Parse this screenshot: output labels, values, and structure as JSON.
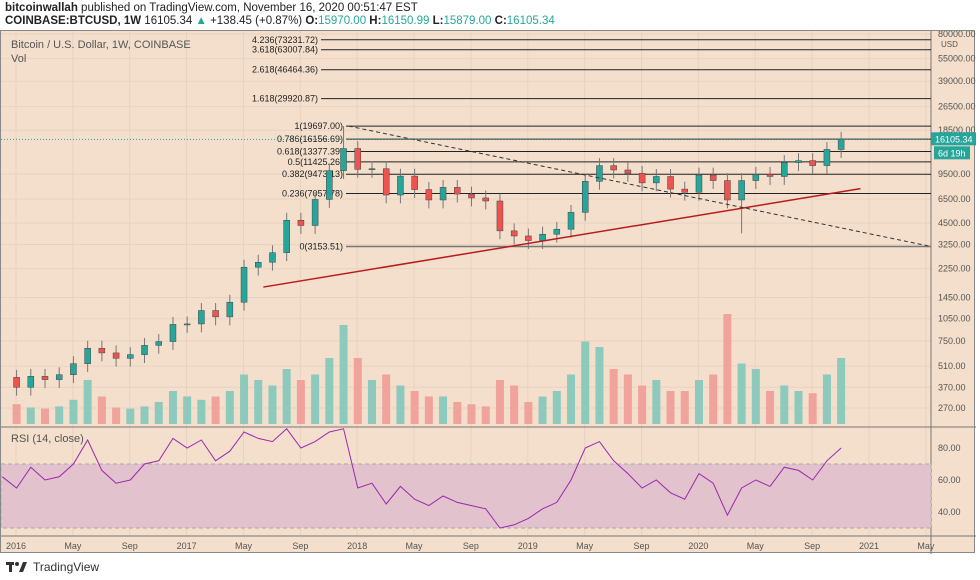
{
  "header": {
    "author": "bitcoinwallah",
    "published": "published on TradingView.com, November 16, 2020 00:51:47 EST",
    "symbol": "COINBASE:BTCUSD, 1W",
    "last": "16105.34",
    "change": "+138.45 (+0.87%)",
    "o_label": "O:",
    "o": "15970.00",
    "h_label": "H:",
    "h": "16150.99",
    "l_label": "L:",
    "l": "15879.00",
    "c_label": "C:",
    "c": "16105.34"
  },
  "legend": {
    "title": "Bitcoin / U.S. Dollar, 1W, COINBASE",
    "vol": "Vol",
    "rsi": "RSI (14, close)"
  },
  "footer": {
    "brand": "TradingView"
  },
  "colors": {
    "up": "#26a69a",
    "down": "#ef5350",
    "up_vol": "#8ec9bd",
    "down_vol": "#f0a39b",
    "rsi": "#9c27b0",
    "trend": "#b71c1c",
    "bg": "#f3dfcc"
  },
  "chart_data": {
    "type": "candlestick",
    "price_scale": "log",
    "ylim": [
      240,
      80000
    ],
    "currency": "USD",
    "y_ticks": [
      "80000.00",
      "55000.00",
      "39000.00",
      "26500.00",
      "18500.00",
      "9500.00",
      "6500.00",
      "4500.00",
      "3250.00",
      "2250.00",
      "1450.00",
      "1050.00",
      "750.00",
      "510.00",
      "370.00",
      "270.00"
    ],
    "x_ticks": [
      "2016",
      "May",
      "Sep",
      "2017",
      "May",
      "Sep",
      "2018",
      "May",
      "Sep",
      "2019",
      "May",
      "Sep",
      "2020",
      "May",
      "Sep",
      "2021",
      "May"
    ],
    "last_price": "16105.34",
    "countdown": "6d 19h",
    "fib_levels": [
      [
        "4.236",
        "73231.72"
      ],
      [
        "3.618",
        "63007.84"
      ],
      [
        "2.618",
        "46464.36"
      ],
      [
        "1.618",
        "29920.87"
      ],
      [
        "1",
        "19697.00"
      ],
      [
        "0.786",
        "16156.69"
      ],
      [
        "0.618",
        "13377.39"
      ],
      [
        "0.5",
        "11425.26"
      ],
      [
        "0.382",
        "9473.13"
      ],
      [
        "0.236",
        "7057.78"
      ],
      [
        "0",
        "3153.51"
      ]
    ],
    "monthly_closes_from_dec_2015": [
      430,
      370,
      437,
      416,
      448,
      530,
      670,
      624,
      575,
      608,
      700,
      742,
      963,
      970,
      1190,
      1080,
      1350,
      2300,
      2480,
      2870,
      4700,
      4340,
      6450,
      10000,
      14000,
      10200,
      10300,
      6900,
      9200,
      7500,
      6400,
      7750,
      7000,
      6600,
      6300,
      4000,
      3700,
      3450,
      3800,
      4100,
      5300,
      8500,
      10800,
      10100,
      9600,
      8300,
      9150,
      7550,
      7200,
      9350,
      8600,
      6400,
      8600,
      9450,
      9150,
      11300,
      11650,
      10800,
      13800,
      16105
    ],
    "volume_relative": [
      20,
      18,
      15,
      14,
      16,
      22,
      40,
      25,
      15,
      14,
      16,
      20,
      30,
      25,
      22,
      25,
      30,
      45,
      40,
      35,
      50,
      40,
      45,
      60,
      90,
      60,
      40,
      45,
      35,
      30,
      25,
      25,
      20,
      18,
      16,
      40,
      35,
      20,
      25,
      30,
      45,
      75,
      70,
      50,
      45,
      35,
      40,
      30,
      30,
      40,
      45,
      100,
      55,
      50,
      30,
      35,
      30,
      28,
      45,
      60
    ],
    "rsi_y_ticks": [
      "80.00",
      "60.00",
      "40.00"
    ],
    "rsi_band": [
      30,
      70
    ],
    "rsi_values": [
      62,
      55,
      68,
      60,
      62,
      70,
      85,
      66,
      58,
      60,
      70,
      72,
      86,
      80,
      85,
      72,
      78,
      90,
      86,
      84,
      92,
      80,
      84,
      90,
      92,
      55,
      58,
      45,
      56,
      48,
      44,
      50,
      46,
      44,
      42,
      30,
      32,
      36,
      42,
      46,
      60,
      80,
      84,
      72,
      64,
      55,
      60,
      52,
      48,
      64,
      58,
      38,
      55,
      60,
      56,
      68,
      66,
      60,
      72,
      80
    ],
    "trendline": {
      "from": [
        "2017-06",
        1700
      ],
      "to": [
        "2020-12",
        7600
      ]
    },
    "downtrend": {
      "from": [
        "2017-12",
        19697
      ],
      "to": [
        "2021-05",
        3153.51
      ]
    }
  }
}
